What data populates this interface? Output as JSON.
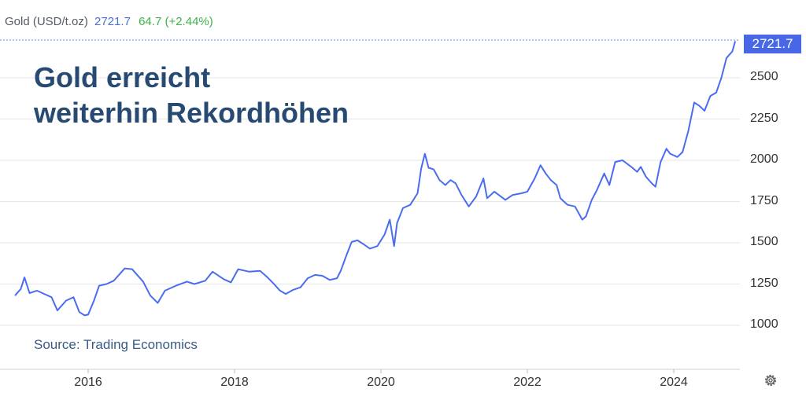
{
  "header": {
    "name": "Gold (USD/t.oz)",
    "price": "2721.7",
    "change": "64.7 (+2.44%)"
  },
  "headline": {
    "line1": "Gold erreicht",
    "line2": "weiterhin Rekordhöhen"
  },
  "source": "Source: Trading Economics",
  "last_price_label": "2721.7",
  "icons": {
    "settings": "gear-icon"
  },
  "colors": {
    "line": "#4a6cf0",
    "price_tag": "#4767e6",
    "headline": "#274a72",
    "change_positive": "#3fb24a"
  },
  "chart_data": {
    "type": "line",
    "title": "",
    "xlabel": "",
    "ylabel": "",
    "y_ticks": [
      "1000",
      "1250",
      "1500",
      "1750",
      "2000",
      "2250",
      "2500"
    ],
    "x_ticks": [
      "2016",
      "2018",
      "2020",
      "2022",
      "2024"
    ],
    "ylim": [
      950,
      2780
    ],
    "xlim": [
      2014.95,
      2024.95
    ],
    "grid": "horizontal",
    "legend": "none",
    "series": [
      {
        "values": [
          [
            2015.0,
            1180
          ],
          [
            2015.08,
            1220
          ],
          [
            2015.13,
            1290
          ],
          [
            2015.2,
            1195
          ],
          [
            2015.3,
            1210
          ],
          [
            2015.4,
            1190
          ],
          [
            2015.5,
            1170
          ],
          [
            2015.58,
            1090
          ],
          [
            2015.7,
            1150
          ],
          [
            2015.8,
            1170
          ],
          [
            2015.88,
            1080
          ],
          [
            2015.95,
            1060
          ],
          [
            2016.0,
            1065
          ],
          [
            2016.08,
            1150
          ],
          [
            2016.15,
            1240
          ],
          [
            2016.25,
            1250
          ],
          [
            2016.35,
            1270
          ],
          [
            2016.5,
            1345
          ],
          [
            2016.6,
            1340
          ],
          [
            2016.75,
            1265
          ],
          [
            2016.85,
            1180
          ],
          [
            2016.95,
            1135
          ],
          [
            2017.05,
            1210
          ],
          [
            2017.2,
            1240
          ],
          [
            2017.35,
            1265
          ],
          [
            2017.45,
            1250
          ],
          [
            2017.6,
            1270
          ],
          [
            2017.7,
            1325
          ],
          [
            2017.85,
            1280
          ],
          [
            2017.95,
            1260
          ],
          [
            2018.05,
            1340
          ],
          [
            2018.2,
            1325
          ],
          [
            2018.35,
            1330
          ],
          [
            2018.45,
            1290
          ],
          [
            2018.55,
            1245
          ],
          [
            2018.62,
            1210
          ],
          [
            2018.7,
            1190
          ],
          [
            2018.8,
            1215
          ],
          [
            2018.9,
            1230
          ],
          [
            2019.0,
            1285
          ],
          [
            2019.1,
            1305
          ],
          [
            2019.2,
            1300
          ],
          [
            2019.3,
            1275
          ],
          [
            2019.4,
            1285
          ],
          [
            2019.45,
            1330
          ],
          [
            2019.52,
            1415
          ],
          [
            2019.6,
            1505
          ],
          [
            2019.68,
            1515
          ],
          [
            2019.75,
            1495
          ],
          [
            2019.85,
            1465
          ],
          [
            2019.95,
            1480
          ],
          [
            2020.05,
            1550
          ],
          [
            2020.12,
            1640
          ],
          [
            2020.18,
            1480
          ],
          [
            2020.22,
            1620
          ],
          [
            2020.3,
            1710
          ],
          [
            2020.4,
            1730
          ],
          [
            2020.5,
            1800
          ],
          [
            2020.55,
            1950
          ],
          [
            2020.6,
            2040
          ],
          [
            2020.65,
            1955
          ],
          [
            2020.72,
            1945
          ],
          [
            2020.8,
            1880
          ],
          [
            2020.88,
            1850
          ],
          [
            2020.95,
            1880
          ],
          [
            2021.02,
            1860
          ],
          [
            2021.1,
            1790
          ],
          [
            2021.2,
            1720
          ],
          [
            2021.3,
            1780
          ],
          [
            2021.4,
            1890
          ],
          [
            2021.45,
            1770
          ],
          [
            2021.55,
            1810
          ],
          [
            2021.7,
            1760
          ],
          [
            2021.8,
            1790
          ],
          [
            2021.92,
            1800
          ],
          [
            2022.0,
            1810
          ],
          [
            2022.1,
            1890
          ],
          [
            2022.18,
            1970
          ],
          [
            2022.25,
            1920
          ],
          [
            2022.32,
            1880
          ],
          [
            2022.4,
            1850
          ],
          [
            2022.45,
            1770
          ],
          [
            2022.55,
            1730
          ],
          [
            2022.65,
            1720
          ],
          [
            2022.75,
            1640
          ],
          [
            2022.8,
            1660
          ],
          [
            2022.88,
            1760
          ],
          [
            2022.95,
            1820
          ],
          [
            2023.05,
            1920
          ],
          [
            2023.12,
            1850
          ],
          [
            2023.2,
            1990
          ],
          [
            2023.3,
            2000
          ],
          [
            2023.42,
            1960
          ],
          [
            2023.5,
            1930
          ],
          [
            2023.55,
            1960
          ],
          [
            2023.62,
            1900
          ],
          [
            2023.7,
            1860
          ],
          [
            2023.75,
            1840
          ],
          [
            2023.82,
            1990
          ],
          [
            2023.9,
            2070
          ],
          [
            2023.95,
            2040
          ],
          [
            2024.05,
            2020
          ],
          [
            2024.12,
            2050
          ],
          [
            2024.2,
            2180
          ],
          [
            2024.28,
            2350
          ],
          [
            2024.35,
            2330
          ],
          [
            2024.42,
            2300
          ],
          [
            2024.5,
            2390
          ],
          [
            2024.58,
            2410
          ],
          [
            2024.65,
            2500
          ],
          [
            2024.72,
            2620
          ],
          [
            2024.8,
            2660
          ],
          [
            2024.84,
            2721.7
          ]
        ]
      }
    ]
  }
}
